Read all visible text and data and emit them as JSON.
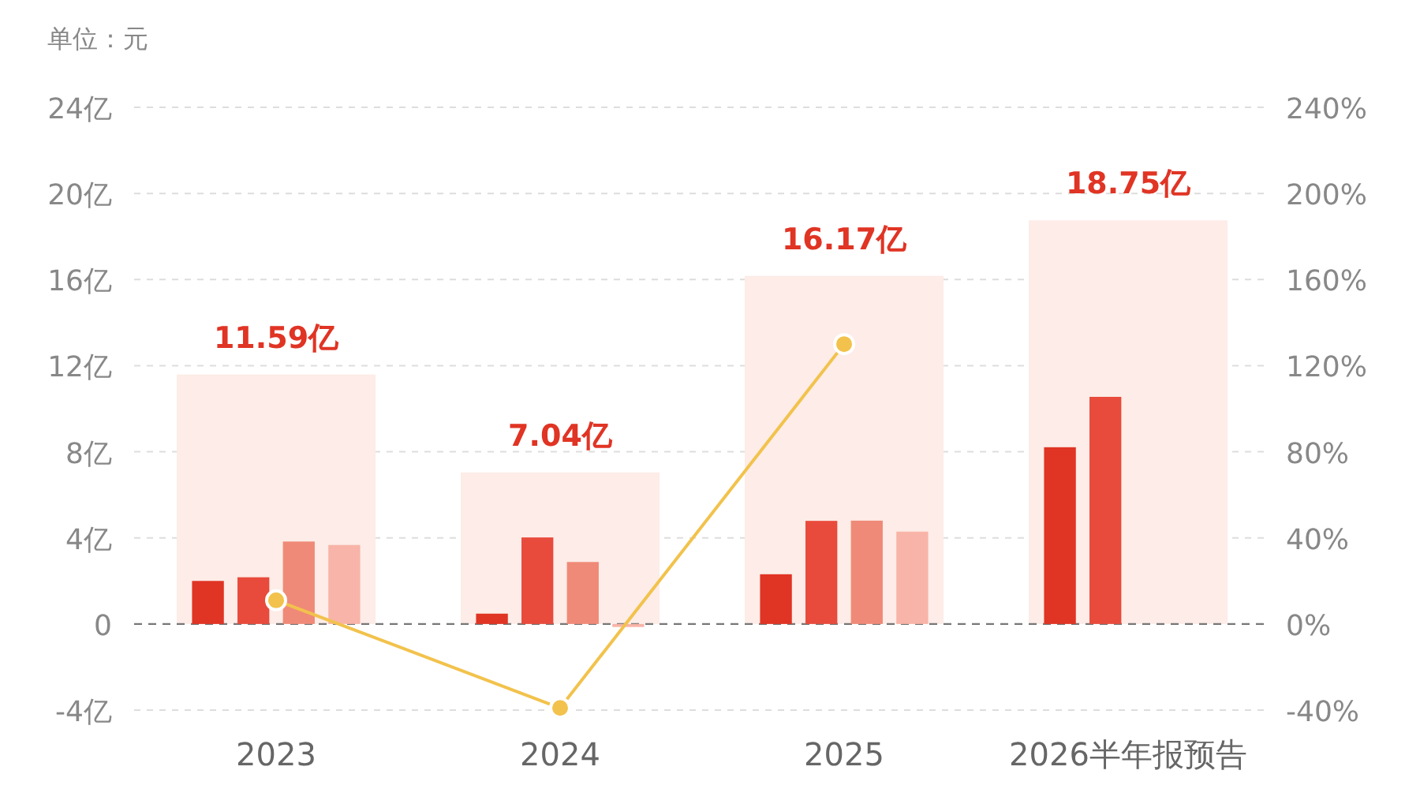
{
  "chart_data": {
    "type": "bar",
    "ylabel": "单位：元",
    "categories": [
      "2023",
      "2024",
      "2025",
      "2026半年报预告"
    ],
    "series": [
      {
        "color": "#fdece7",
        "values": [
          11.59,
          7.04,
          16.17,
          18.75
        ],
        "value_labels": [
          "11.59亿",
          "7.04亿",
          "16.17亿",
          "18.75亿"
        ]
      },
      {
        "color": "#e03424",
        "values": [
          2.0,
          0.48,
          2.31,
          8.21
        ]
      },
      {
        "color": "#e84a3c",
        "values": [
          2.17,
          4.02,
          4.79,
          10.55
        ]
      },
      {
        "color": "#f08a78",
        "values": [
          3.83,
          2.88,
          4.8,
          null
        ]
      },
      {
        "color": "#f8b4a8",
        "values": [
          3.67,
          -0.14,
          4.29,
          null
        ]
      },
      {
        "type": "line",
        "axis": "y2",
        "color": "#f2c24c",
        "values": [
          11,
          -39,
          130,
          null
        ]
      }
    ],
    "ylim": [
      -4,
      24
    ],
    "yticks": [
      {
        "value": -4,
        "label": "-4亿"
      },
      0,
      {
        "value": 4,
        "label": "4亿"
      },
      {
        "value": 8,
        "label": "8亿"
      },
      {
        "value": 12,
        "label": "12亿"
      },
      {
        "value": 16,
        "label": "16亿"
      },
      {
        "value": 20,
        "label": "20亿"
      },
      {
        "value": 24,
        "label": "24亿"
      }
    ],
    "y2lim": [
      -40,
      240
    ],
    "y2ticks": [
      {
        "value": -40,
        "label": "-40%"
      },
      {
        "value": 0,
        "label": "0%"
      },
      {
        "value": 40,
        "label": "40%"
      },
      {
        "value": 80,
        "label": "80%"
      },
      {
        "value": 120,
        "label": "120%"
      },
      {
        "value": 160,
        "label": "160%"
      },
      {
        "value": 200,
        "label": "200%"
      },
      {
        "value": 240,
        "label": "240%"
      }
    ],
    "ref_lines": [
      {
        "axis": "y",
        "value": 0,
        "color": "#777777",
        "line_style": "dashed"
      }
    ],
    "grid": "y",
    "marker": "circle"
  }
}
